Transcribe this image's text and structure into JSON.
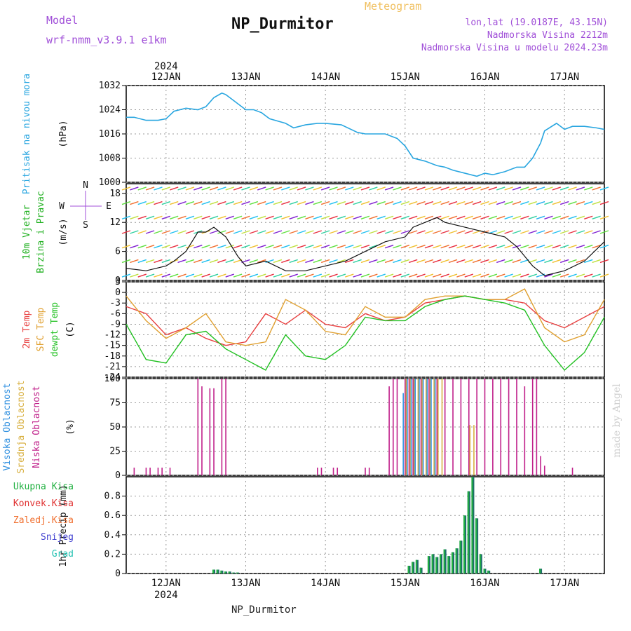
{
  "header": {
    "model_label": "Model",
    "model_name": "wrf-nmm_v3.9.1 e1km",
    "title": "NP_Durmitor",
    "meteogram": "Meteogram",
    "info_line1": "lon,lat (19.0187E, 43.15N)",
    "info_line2": "Nadmorska Visina 2212m",
    "info_line3": "Nadmorska Visina u modelu 2024.23m"
  },
  "footer": {
    "station": "NP_Durmitor",
    "watermark": "made by Angel"
  },
  "colors": {
    "pressure": "#29a6e0",
    "temp2m": "#e84040",
    "sfc": "#e0a030",
    "dewpt": "#20c020",
    "cloud_high": "#3090e0",
    "cloud_mid": "#d8b040",
    "cloud_low": "#c0208a",
    "precip_total": "#20b040",
    "precip_conv": "#e03030",
    "precip_frozen": "#f07030",
    "precip_snow": "#4040d0",
    "precip_grad": "#20c0b0",
    "wind_speed_line": "#111111"
  },
  "chart_data": [
    {
      "type": "line",
      "panel": "pressure",
      "ylabel": "Pritisak na nivou mora",
      "unit": "(hPa)",
      "ylim": [
        1000,
        1032
      ],
      "yticks": [
        1000,
        1008,
        1016,
        1024,
        1032
      ],
      "x_dates": [
        "2024",
        "12JAN",
        "13JAN",
        "14JAN",
        "15JAN",
        "16JAN",
        "17JAN"
      ],
      "series": [
        {
          "x": [
            11.5,
            11.6,
            11.75,
            11.9,
            12.0,
            12.1,
            12.25,
            12.4,
            12.5,
            12.6,
            12.7,
            12.75,
            12.8,
            12.9,
            13.0,
            13.1,
            13.2,
            13.3,
            13.5,
            13.6,
            13.75,
            13.9,
            14.0,
            14.2,
            14.4,
            14.5,
            14.6,
            14.75,
            14.9,
            15.0,
            15.1,
            15.25,
            15.4,
            15.5,
            15.6,
            15.75,
            15.9,
            16.0,
            16.1,
            16.25,
            16.4,
            16.5,
            16.6,
            16.7,
            16.75,
            16.9,
            17.0,
            17.1,
            17.25,
            17.4,
            17.5
          ],
          "y": [
            1021.5,
            1021.5,
            1020.5,
            1020.5,
            1021,
            1023.5,
            1024.5,
            1024,
            1025,
            1028,
            1029.5,
            1029,
            1028,
            1026,
            1024,
            1024,
            1023,
            1021,
            1019.5,
            1018,
            1019,
            1019.5,
            1019.5,
            1019,
            1016.5,
            1016,
            1016,
            1016,
            1014.5,
            1012,
            1008,
            1007,
            1005.5,
            1005,
            1004,
            1003,
            1002,
            1003,
            1002.5,
            1003.5,
            1005,
            1005,
            1008,
            1013,
            1017,
            1019.5,
            1017.5,
            1018.5,
            1018.5,
            1018,
            1017.5
          ]
        }
      ]
    },
    {
      "type": "scatter",
      "panel": "wind",
      "ylabel": "10m Vjetar Brzina i Pravac",
      "unit": "(m/s)",
      "ylim": [
        0,
        20
      ],
      "yticks": [
        0,
        6,
        12,
        18
      ],
      "compass": {
        "north": "N",
        "east": "E",
        "west": "W",
        "south": "S"
      },
      "series": [
        {
          "name": "speed",
          "x": [
            11.5,
            11.75,
            12.0,
            12.1,
            12.25,
            12.4,
            12.5,
            12.6,
            12.75,
            12.9,
            13.0,
            13.25,
            13.5,
            13.75,
            14.0,
            14.25,
            14.5,
            14.75,
            15.0,
            15.1,
            15.25,
            15.4,
            15.5,
            15.75,
            16.0,
            16.25,
            16.4,
            16.5,
            16.6,
            16.75,
            17.0,
            17.25,
            17.5
          ],
          "y": [
            2.5,
            2,
            3,
            4,
            6,
            10,
            10,
            11,
            9,
            5,
            3,
            4,
            2,
            2,
            3,
            4,
            6,
            8,
            9,
            11,
            12,
            13,
            12,
            11,
            10,
            9,
            7,
            5,
            3,
            1,
            2,
            4,
            8
          ]
        }
      ]
    },
    {
      "type": "line",
      "panel": "temperature",
      "ylabel": [
        "2m Temp",
        "SFC Temp",
        "dewpt Temp"
      ],
      "unit": "(C)",
      "ylim": [
        -24,
        3
      ],
      "yticks": [
        -24,
        -21,
        -18,
        -15,
        -12,
        -9,
        -6,
        -3,
        0,
        3
      ],
      "series": [
        {
          "name": "2m Temp",
          "x": [
            11.5,
            11.75,
            12.0,
            12.25,
            12.5,
            12.75,
            13.0,
            13.25,
            13.5,
            13.75,
            14.0,
            14.25,
            14.5,
            14.75,
            15.0,
            15.25,
            15.5,
            15.75,
            16.0,
            16.25,
            16.5,
            16.75,
            17.0,
            17.25,
            17.5
          ],
          "y": [
            -4,
            -6,
            -12,
            -10,
            -13,
            -15,
            -14,
            -6,
            -9,
            -5,
            -9,
            -10,
            -6,
            -8,
            -7,
            -3,
            -2,
            -1,
            -2,
            -2,
            -3,
            -8,
            -10,
            -7,
            -4
          ]
        },
        {
          "name": "SFC Temp",
          "x": [
            11.5,
            11.75,
            12.0,
            12.25,
            12.5,
            12.75,
            13.0,
            13.25,
            13.5,
            13.75,
            14.0,
            14.25,
            14.5,
            14.75,
            15.0,
            15.25,
            15.5,
            15.75,
            16.0,
            16.25,
            16.5,
            16.75,
            17.0,
            17.25,
            17.5
          ],
          "y": [
            -1,
            -8,
            -13,
            -10,
            -6,
            -14,
            -15,
            -14,
            -2,
            -5,
            -11,
            -12,
            -4,
            -7,
            -7,
            -2,
            -1,
            -1,
            -2,
            -2,
            1,
            -10,
            -14,
            -12,
            -2
          ]
        },
        {
          "name": "dewpt Temp",
          "x": [
            11.5,
            11.75,
            12.0,
            12.25,
            12.5,
            12.75,
            13.0,
            13.25,
            13.5,
            13.75,
            14.0,
            14.25,
            14.5,
            14.75,
            15.0,
            15.25,
            15.5,
            15.75,
            16.0,
            16.25,
            16.5,
            16.75,
            17.0,
            17.25,
            17.5
          ],
          "y": [
            -9,
            -19,
            -20,
            -12,
            -11,
            -16,
            -19,
            -22,
            -12,
            -18,
            -19,
            -15,
            -7,
            -8,
            -8,
            -4,
            -2,
            -1,
            -2,
            -3,
            -5,
            -15,
            -22,
            -17,
            -7
          ]
        }
      ]
    },
    {
      "type": "bar",
      "panel": "clouds",
      "ylabel": [
        "Visoka Oblacnost",
        "Srednja Oblacnost",
        "Niska Oblacnost"
      ],
      "unit": "(%)",
      "ylim": [
        0,
        100
      ],
      "yticks": [
        0,
        25,
        50,
        75,
        100
      ],
      "series": [
        {
          "name": "Niska Oblacnost",
          "x": [
            11.6,
            11.75,
            11.8,
            11.9,
            11.95,
            12.05,
            12.4,
            12.45,
            12.55,
            12.6,
            12.7,
            12.75,
            13.9,
            13.95,
            14.1,
            14.15,
            14.5,
            14.55,
            14.8,
            14.85,
            14.9,
            15.0,
            15.05,
            15.1,
            15.2,
            15.3,
            15.4,
            15.5,
            15.6,
            15.7,
            15.8,
            15.9,
            16.0,
            16.1,
            16.2,
            16.3,
            16.4,
            16.5,
            16.6,
            16.65,
            16.7,
            16.75,
            17.1
          ],
          "y": [
            8,
            8,
            8,
            8,
            8,
            8,
            100,
            92,
            90,
            90,
            100,
            100,
            8,
            8,
            8,
            8,
            8,
            8,
            92,
            100,
            100,
            100,
            100,
            100,
            100,
            100,
            100,
            100,
            100,
            100,
            100,
            100,
            100,
            100,
            100,
            100,
            100,
            92,
            100,
            100,
            20,
            10,
            8
          ]
        },
        {
          "name": "Srednja Oblacnost",
          "x": [
            15.0,
            15.05,
            15.1,
            15.15,
            15.2,
            15.25,
            15.3,
            15.35,
            15.4,
            15.45,
            15.8,
            15.85
          ],
          "y": [
            100,
            100,
            100,
            100,
            100,
            100,
            100,
            100,
            100,
            100,
            52,
            52
          ]
        },
        {
          "name": "Visoka Oblacnost",
          "x": [
            14.95,
            15.0,
            15.05,
            15.1,
            15.15,
            15.2,
            15.25,
            15.3,
            15.35
          ],
          "y": [
            85,
            100,
            100,
            100,
            100,
            100,
            100,
            100,
            100
          ]
        }
      ]
    },
    {
      "type": "bar",
      "panel": "precip",
      "ylabel": "1hr Precip (mm)",
      "ylim": [
        0,
        1.0
      ],
      "yticks": [
        0,
        0.2,
        0.4,
        0.6,
        0.8
      ],
      "legend": [
        "Ukupna Kisa",
        "Konvek.Kisa",
        "Zaledj.Kisa",
        "Snijeg",
        "Grad"
      ],
      "series": [
        {
          "name": "Ukupna Kisa",
          "x": [
            12.6,
            12.65,
            12.7,
            12.75,
            12.8,
            12.85,
            12.9,
            15.05,
            15.1,
            15.15,
            15.2,
            15.3,
            15.35,
            15.4,
            15.45,
            15.5,
            15.55,
            15.6,
            15.65,
            15.7,
            15.75,
            15.8,
            15.85,
            15.9,
            15.95,
            16.0,
            16.05,
            16.7
          ],
          "y": [
            0.04,
            0.04,
            0.03,
            0.02,
            0.02,
            0.01,
            0.01,
            0.08,
            0.12,
            0.14,
            0.06,
            0.18,
            0.2,
            0.17,
            0.2,
            0.25,
            0.18,
            0.22,
            0.26,
            0.34,
            0.6,
            0.85,
            1.0,
            0.57,
            0.2,
            0.05,
            0.03,
            0.05
          ]
        }
      ]
    }
  ]
}
